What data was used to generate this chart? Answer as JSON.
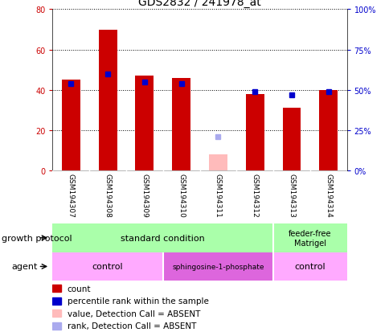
{
  "title": "GDS2832 / 241978_at",
  "samples": [
    "GSM194307",
    "GSM194308",
    "GSM194309",
    "GSM194310",
    "GSM194311",
    "GSM194312",
    "GSM194313",
    "GSM194314"
  ],
  "bar_values": [
    45,
    70,
    47,
    46,
    8,
    38,
    31,
    40
  ],
  "bar_colors": [
    "#cc0000",
    "#cc0000",
    "#cc0000",
    "#cc0000",
    "#ffbbbb",
    "#cc0000",
    "#cc0000",
    "#cc0000"
  ],
  "dot_values": [
    54,
    60,
    55,
    54,
    21,
    49,
    47,
    49
  ],
  "dot_colors": [
    "#0000cc",
    "#0000cc",
    "#0000cc",
    "#0000cc",
    "#aaaaee",
    "#0000cc",
    "#0000cc",
    "#0000cc"
  ],
  "ylim_left": [
    0,
    80
  ],
  "ylim_right": [
    0,
    100
  ],
  "yticks_left": [
    0,
    20,
    40,
    60,
    80
  ],
  "ytick_labels_right": [
    "0%",
    "25%",
    "50%",
    "75%",
    "100%"
  ],
  "yticks_right": [
    0,
    25,
    50,
    75,
    100
  ],
  "growth_color": "#aaffaa",
  "feeder_color": "#aaffaa",
  "agent_control_color": "#ffaaff",
  "agent_sphingo_color": "#dd66dd",
  "sample_bg_color": "#cccccc",
  "legend_items": [
    {
      "label": "count",
      "color": "#cc0000"
    },
    {
      "label": "percentile rank within the sample",
      "color": "#0000cc"
    },
    {
      "label": "value, Detection Call = ABSENT",
      "color": "#ffbbbb"
    },
    {
      "label": "rank, Detection Call = ABSENT",
      "color": "#aaaaee"
    }
  ],
  "ax_label_color_left": "#cc0000",
  "ax_label_color_right": "#0000cc",
  "title_fontsize": 10,
  "tick_fontsize": 7,
  "sample_fontsize": 6.5,
  "row_label_fontsize": 8,
  "group_fontsize": 8,
  "legend_fontsize": 7.5
}
